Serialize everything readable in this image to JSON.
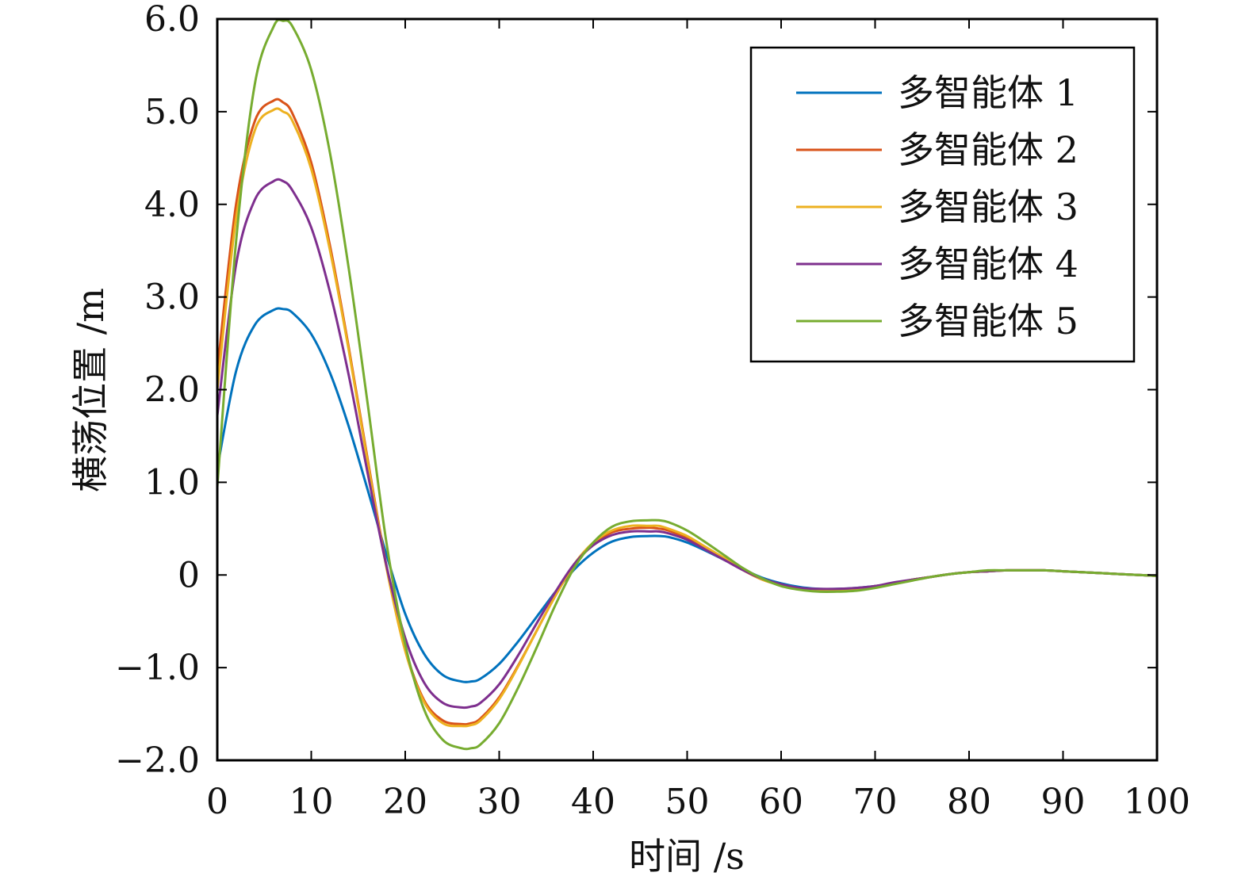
{
  "chart_data": {
    "type": "line",
    "title": "",
    "xlabel": "时间 /s",
    "ylabel": "横荡位置 /m",
    "xlim": [
      0,
      100
    ],
    "ylim": [
      -2.0,
      6.0
    ],
    "xticks": [
      0,
      10,
      20,
      30,
      40,
      50,
      60,
      70,
      80,
      90,
      100
    ],
    "xtick_labels": [
      "0",
      "10",
      "20",
      "30",
      "40",
      "50",
      "60",
      "70",
      "80",
      "90",
      "100"
    ],
    "yticks": [
      -2.0,
      -1.0,
      0,
      1.0,
      2.0,
      3.0,
      4.0,
      5.0,
      6.0
    ],
    "ytick_labels": [
      "−2.0",
      "−1.0",
      "0",
      "1.0",
      "2.0",
      "3.0",
      "4.0",
      "5.0",
      "6.0"
    ],
    "grid": false,
    "legend_position": "top-right",
    "x": [
      0,
      2,
      4,
      6,
      7,
      8,
      10,
      12,
      14,
      16,
      18,
      20,
      22,
      24,
      26,
      27,
      28,
      30,
      32,
      34,
      36,
      38,
      40,
      42,
      44,
      46,
      47,
      48,
      50,
      52,
      54,
      56,
      58,
      60,
      62,
      64,
      66,
      68,
      70,
      72,
      74,
      76,
      78,
      80,
      82,
      84,
      86,
      88,
      90,
      92,
      94,
      96,
      98,
      100
    ],
    "series": [
      {
        "name": "多智能体 1",
        "color": "#0072bd",
        "values": [
          1.15,
          2.2,
          2.7,
          2.86,
          2.87,
          2.83,
          2.6,
          2.18,
          1.6,
          0.92,
          0.22,
          -0.42,
          -0.85,
          -1.08,
          -1.15,
          -1.15,
          -1.12,
          -0.96,
          -0.72,
          -0.45,
          -0.18,
          0.06,
          0.24,
          0.36,
          0.41,
          0.42,
          0.42,
          0.41,
          0.35,
          0.26,
          0.16,
          0.06,
          -0.03,
          -0.09,
          -0.13,
          -0.15,
          -0.15,
          -0.14,
          -0.12,
          -0.09,
          -0.05,
          -0.02,
          0.01,
          0.03,
          0.04,
          0.05,
          0.05,
          0.05,
          0.04,
          0.03,
          0.02,
          0.01,
          0.0,
          -0.01
        ]
      },
      {
        "name": "多智能体 2",
        "color": "#d95319",
        "values": [
          2.2,
          4.0,
          4.9,
          5.12,
          5.1,
          4.98,
          4.45,
          3.55,
          2.45,
          1.25,
          0.1,
          -0.8,
          -1.35,
          -1.57,
          -1.61,
          -1.6,
          -1.55,
          -1.32,
          -0.98,
          -0.6,
          -0.22,
          0.11,
          0.33,
          0.46,
          0.5,
          0.51,
          0.5,
          0.48,
          0.4,
          0.29,
          0.17,
          0.05,
          -0.05,
          -0.11,
          -0.15,
          -0.16,
          -0.16,
          -0.15,
          -0.12,
          -0.09,
          -0.05,
          -0.02,
          0.01,
          0.03,
          0.04,
          0.05,
          0.05,
          0.05,
          0.04,
          0.03,
          0.02,
          0.01,
          0.0,
          -0.01
        ]
      },
      {
        "name": "多智能体 3",
        "color": "#edb120",
        "values": [
          2.0,
          3.85,
          4.8,
          5.02,
          5.0,
          4.9,
          4.38,
          3.5,
          2.42,
          1.22,
          0.08,
          -0.82,
          -1.37,
          -1.6,
          -1.63,
          -1.62,
          -1.57,
          -1.34,
          -0.99,
          -0.6,
          -0.22,
          0.12,
          0.35,
          0.48,
          0.53,
          0.53,
          0.53,
          0.5,
          0.42,
          0.3,
          0.18,
          0.06,
          -0.05,
          -0.11,
          -0.15,
          -0.17,
          -0.17,
          -0.16,
          -0.13,
          -0.09,
          -0.05,
          -0.02,
          0.01,
          0.03,
          0.04,
          0.05,
          0.05,
          0.05,
          0.04,
          0.03,
          0.02,
          0.01,
          0.0,
          -0.01
        ]
      },
      {
        "name": "多智能体 4",
        "color": "#7e2f8e",
        "values": [
          1.72,
          3.35,
          4.05,
          4.25,
          4.25,
          4.15,
          3.75,
          3.05,
          2.15,
          1.1,
          0.1,
          -0.68,
          -1.16,
          -1.38,
          -1.43,
          -1.42,
          -1.38,
          -1.18,
          -0.87,
          -0.52,
          -0.18,
          0.12,
          0.32,
          0.43,
          0.47,
          0.47,
          0.47,
          0.45,
          0.38,
          0.27,
          0.16,
          0.05,
          -0.04,
          -0.1,
          -0.14,
          -0.15,
          -0.15,
          -0.14,
          -0.12,
          -0.08,
          -0.05,
          -0.02,
          0.01,
          0.03,
          0.04,
          0.05,
          0.05,
          0.05,
          0.04,
          0.03,
          0.02,
          0.01,
          0.0,
          -0.01
        ]
      },
      {
        "name": "多智能体 5",
        "color": "#77ac30",
        "values": [
          0.95,
          3.6,
          5.3,
          5.92,
          5.98,
          5.92,
          5.45,
          4.55,
          3.3,
          1.85,
          0.35,
          -0.75,
          -1.45,
          -1.78,
          -1.87,
          -1.87,
          -1.83,
          -1.6,
          -1.22,
          -0.78,
          -0.32,
          0.08,
          0.35,
          0.52,
          0.58,
          0.59,
          0.59,
          0.57,
          0.48,
          0.35,
          0.21,
          0.07,
          -0.04,
          -0.12,
          -0.16,
          -0.18,
          -0.18,
          -0.17,
          -0.14,
          -0.1,
          -0.06,
          -0.02,
          0.01,
          0.03,
          0.05,
          0.05,
          0.05,
          0.05,
          0.04,
          0.03,
          0.02,
          0.01,
          0.0,
          -0.01
        ]
      }
    ]
  }
}
